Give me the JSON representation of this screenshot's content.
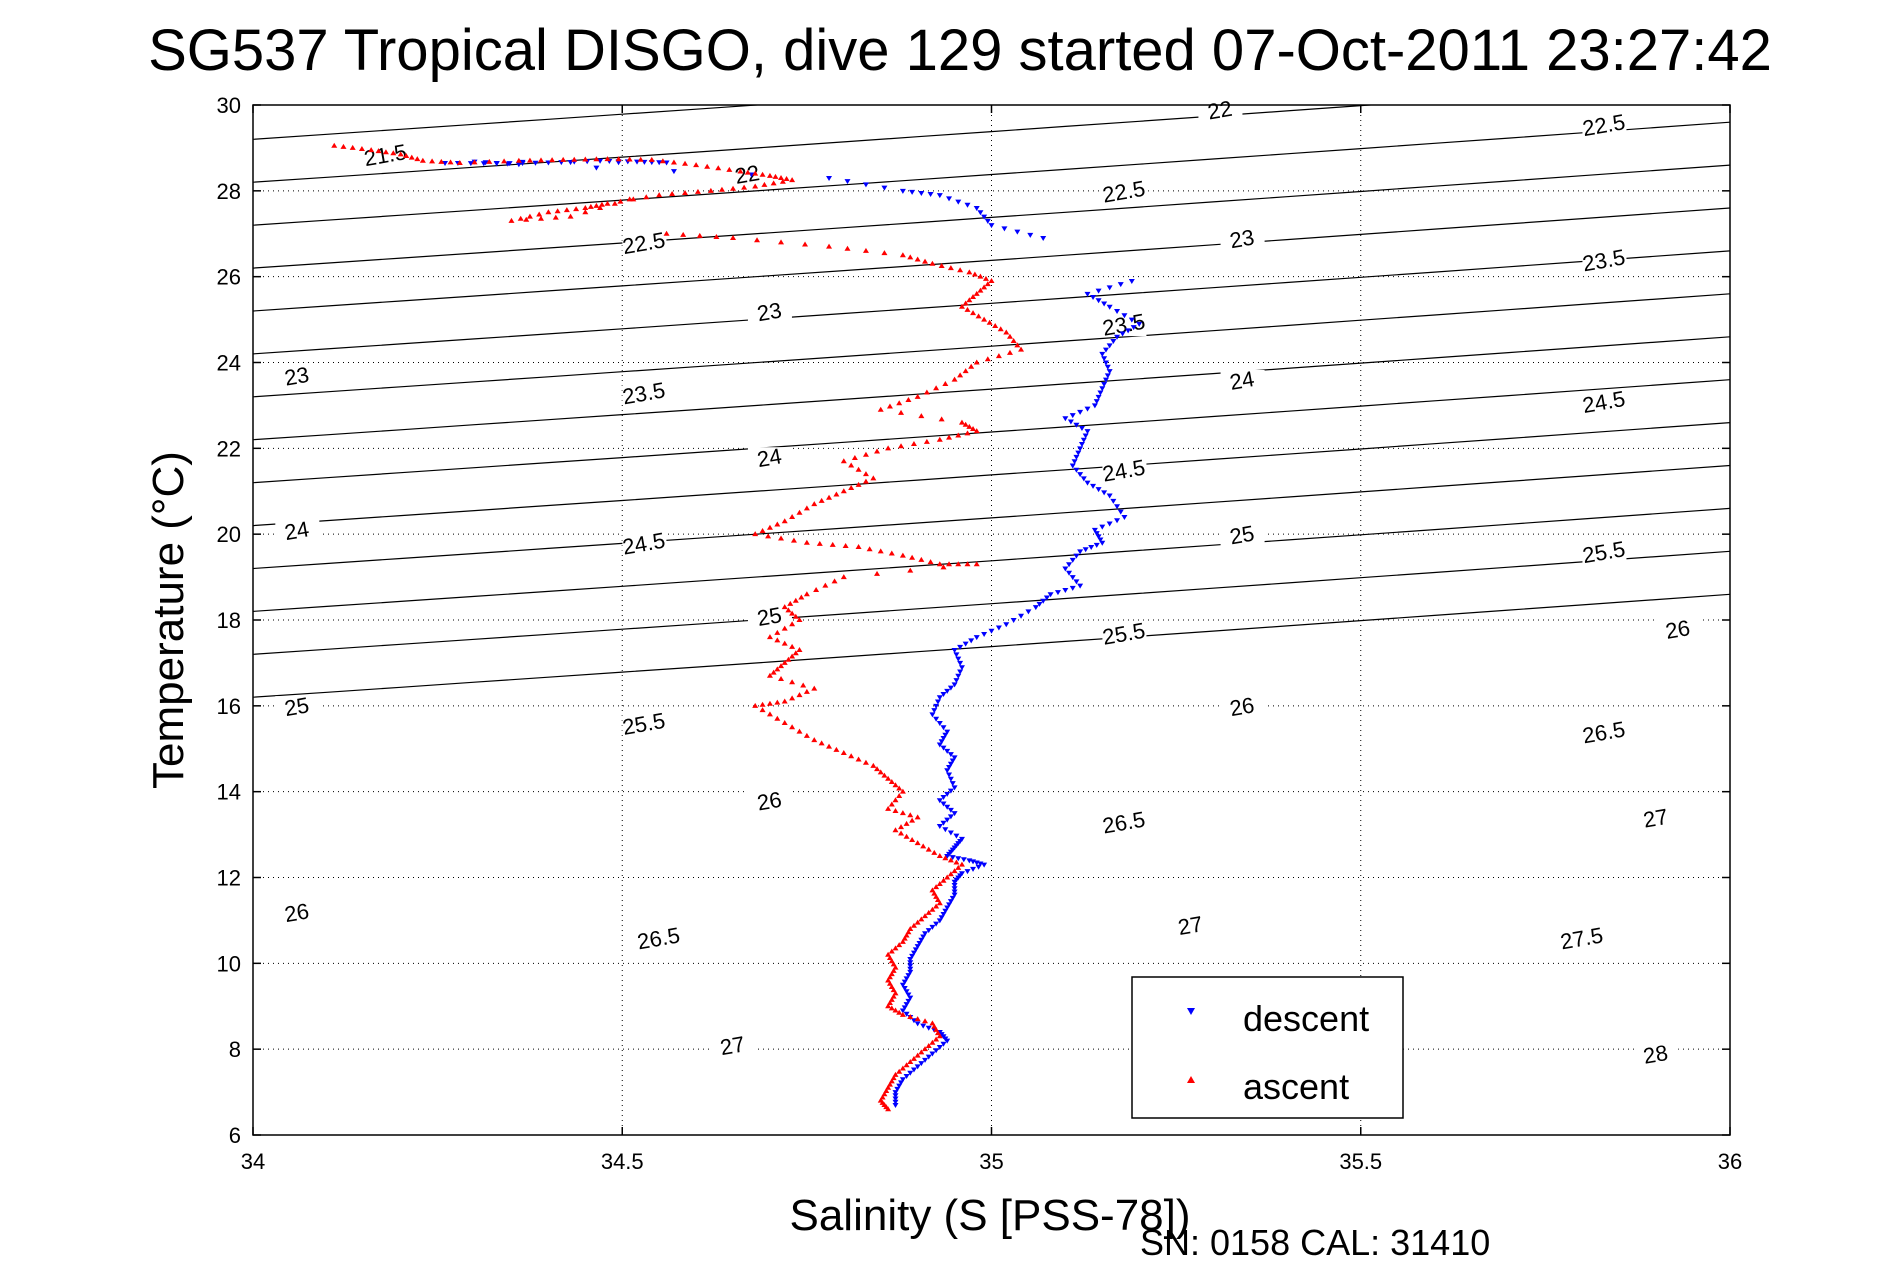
{
  "chart_data": {
    "type": "scatter",
    "title": "SG537 Tropical DISGO, dive 129 started 07-Oct-2011 23:27:42",
    "xlabel": "Salinity (S [PSS-78])",
    "ylabel": "Temperature (°C)",
    "xlim": [
      34,
      36
    ],
    "ylim": [
      6,
      30
    ],
    "xticks": [
      34,
      34.5,
      35,
      35.5,
      36
    ],
    "xtick_labels": [
      "34",
      "34.5",
      "35",
      "35.5",
      "36"
    ],
    "yticks": [
      6,
      8,
      10,
      12,
      14,
      16,
      18,
      20,
      22,
      24,
      26,
      28,
      30
    ],
    "ytick_labels": [
      "6",
      "8",
      "10",
      "12",
      "14",
      "16",
      "18",
      "20",
      "22",
      "24",
      "26",
      "28",
      "30"
    ],
    "grid": true,
    "legend_position": "bottom-right",
    "contours": {
      "sigma_levels": [
        21.5,
        22,
        22.5,
        23,
        23.5,
        24,
        24.5,
        25,
        25.5,
        26,
        26.5,
        27,
        27.5,
        28
      ],
      "labels": [
        {
          "text": "21.5",
          "s": 34.18,
          "t": 28.75
        },
        {
          "text": "22",
          "s": 35.31,
          "t": 29.8
        },
        {
          "text": "22.5",
          "s": 35.83,
          "t": 29.45
        },
        {
          "text": "22",
          "s": 34.67,
          "t": 28.3
        },
        {
          "text": "22.5",
          "s": 35.18,
          "t": 27.9
        },
        {
          "text": "22.5",
          "s": 34.53,
          "t": 26.7
        },
        {
          "text": "23",
          "s": 35.34,
          "t": 26.8
        },
        {
          "text": "23.5",
          "s": 35.83,
          "t": 26.3
        },
        {
          "text": "23",
          "s": 34.7,
          "t": 25.1
        },
        {
          "text": "23.5",
          "s": 35.18,
          "t": 24.8
        },
        {
          "text": "23",
          "s": 34.06,
          "t": 23.6
        },
        {
          "text": "23.5",
          "s": 34.53,
          "t": 23.2
        },
        {
          "text": "24",
          "s": 35.34,
          "t": 23.5
        },
        {
          "text": "24.5",
          "s": 35.83,
          "t": 23.0
        },
        {
          "text": "24",
          "s": 34.7,
          "t": 21.7
        },
        {
          "text": "24.5",
          "s": 35.18,
          "t": 21.4
        },
        {
          "text": "24",
          "s": 34.06,
          "t": 20.0
        },
        {
          "text": "24.5",
          "s": 34.53,
          "t": 19.7
        },
        {
          "text": "25",
          "s": 35.34,
          "t": 19.9
        },
        {
          "text": "25.5",
          "s": 35.83,
          "t": 19.5
        },
        {
          "text": "25",
          "s": 34.7,
          "t": 18.0
        },
        {
          "text": "25.5",
          "s": 35.18,
          "t": 17.6
        },
        {
          "text": "26",
          "s": 35.93,
          "t": 17.7
        },
        {
          "text": "25",
          "s": 34.06,
          "t": 15.9
        },
        {
          "text": "25.5",
          "s": 34.53,
          "t": 15.5
        },
        {
          "text": "26",
          "s": 35.34,
          "t": 15.9
        },
        {
          "text": "26.5",
          "s": 35.83,
          "t": 15.3
        },
        {
          "text": "26",
          "s": 34.7,
          "t": 13.7
        },
        {
          "text": "26.5",
          "s": 35.18,
          "t": 13.2
        },
        {
          "text": "27",
          "s": 35.9,
          "t": 13.3
        },
        {
          "text": "26",
          "s": 34.06,
          "t": 11.1
        },
        {
          "text": "26.5",
          "s": 34.55,
          "t": 10.5
        },
        {
          "text": "27",
          "s": 35.27,
          "t": 10.8
        },
        {
          "text": "27.5",
          "s": 35.8,
          "t": 10.5
        },
        {
          "text": "27",
          "s": 34.65,
          "t": 8.0
        },
        {
          "text": "28",
          "s": 35.9,
          "t": 7.8
        }
      ]
    },
    "series": [
      {
        "name": "descent",
        "color": "#0000ff",
        "marker": "triangle-down",
        "points": [
          [
            34.26,
            28.65
          ],
          [
            34.33,
            28.64
          ],
          [
            34.4,
            28.66
          ],
          [
            34.47,
            28.7
          ],
          [
            34.52,
            28.68
          ],
          [
            34.56,
            28.66
          ],
          [
            34.3,
            28.68
          ],
          [
            34.36,
            28.62
          ],
          [
            34.78,
            28.3
          ],
          [
            34.88,
            28.0
          ],
          [
            34.93,
            27.9
          ],
          [
            34.98,
            27.6
          ],
          [
            35.0,
            27.2
          ],
          [
            35.07,
            26.9
          ],
          [
            35.19,
            25.9
          ],
          [
            35.13,
            25.6
          ],
          [
            35.16,
            25.3
          ],
          [
            35.2,
            24.9
          ],
          [
            35.17,
            24.6
          ],
          [
            35.15,
            24.2
          ],
          [
            35.16,
            23.8
          ],
          [
            35.15,
            23.4
          ],
          [
            35.14,
            23.0
          ],
          [
            35.1,
            22.7
          ],
          [
            35.13,
            22.4
          ],
          [
            35.12,
            22.0
          ],
          [
            35.11,
            21.6
          ],
          [
            35.13,
            21.2
          ],
          [
            35.16,
            20.9
          ],
          [
            35.18,
            20.4
          ],
          [
            35.14,
            20.1
          ],
          [
            35.15,
            19.8
          ],
          [
            35.12,
            19.6
          ],
          [
            35.1,
            19.2
          ],
          [
            35.12,
            18.8
          ],
          [
            35.08,
            18.6
          ],
          [
            35.06,
            18.3
          ],
          [
            35.02,
            17.9
          ],
          [
            34.98,
            17.6
          ],
          [
            34.95,
            17.3
          ],
          [
            34.96,
            16.9
          ],
          [
            34.95,
            16.5
          ],
          [
            34.93,
            16.2
          ],
          [
            34.92,
            15.8
          ],
          [
            34.94,
            15.4
          ],
          [
            34.93,
            15.1
          ],
          [
            34.95,
            14.8
          ],
          [
            34.94,
            14.5
          ],
          [
            34.95,
            14.1
          ],
          [
            34.93,
            13.8
          ],
          [
            34.95,
            13.5
          ],
          [
            34.93,
            13.2
          ],
          [
            34.96,
            12.9
          ],
          [
            34.95,
            12.7
          ],
          [
            34.94,
            12.5
          ],
          [
            34.97,
            12.4
          ],
          [
            34.99,
            12.3
          ],
          [
            34.96,
            12.1
          ],
          [
            34.95,
            11.9
          ],
          [
            34.95,
            11.6
          ],
          [
            34.94,
            11.3
          ],
          [
            34.93,
            11.0
          ],
          [
            34.91,
            10.7
          ],
          [
            34.9,
            10.4
          ],
          [
            34.89,
            10.1
          ],
          [
            34.89,
            9.8
          ],
          [
            34.88,
            9.5
          ],
          [
            34.89,
            9.2
          ],
          [
            34.88,
            8.9
          ],
          [
            34.9,
            8.6
          ],
          [
            34.93,
            8.4
          ],
          [
            34.94,
            8.2
          ],
          [
            34.92,
            7.9
          ],
          [
            34.9,
            7.6
          ],
          [
            34.88,
            7.3
          ],
          [
            34.87,
            7.0
          ],
          [
            34.87,
            6.7
          ]
        ]
      },
      {
        "name": "ascent",
        "color": "#ff0000",
        "marker": "triangle-up",
        "points": [
          [
            34.11,
            29.05
          ],
          [
            34.16,
            28.95
          ],
          [
            34.2,
            28.85
          ],
          [
            34.23,
            28.7
          ],
          [
            34.28,
            28.65
          ],
          [
            34.36,
            28.7
          ],
          [
            34.42,
            28.72
          ],
          [
            34.48,
            28.74
          ],
          [
            34.54,
            28.72
          ],
          [
            34.6,
            28.6
          ],
          [
            34.66,
            28.45
          ],
          [
            34.7,
            28.35
          ],
          [
            34.73,
            28.25
          ],
          [
            34.68,
            28.1
          ],
          [
            34.62,
            28.0
          ],
          [
            34.55,
            27.9
          ],
          [
            34.48,
            27.7
          ],
          [
            34.45,
            27.6
          ],
          [
            34.4,
            27.5
          ],
          [
            34.35,
            27.3
          ],
          [
            34.43,
            27.4
          ],
          [
            34.51,
            27.8
          ],
          [
            34.56,
            27.0
          ],
          [
            34.65,
            26.9
          ],
          [
            34.78,
            26.7
          ],
          [
            34.88,
            26.5
          ],
          [
            34.92,
            26.3
          ],
          [
            34.97,
            26.1
          ],
          [
            35.0,
            25.9
          ],
          [
            34.98,
            25.6
          ],
          [
            34.96,
            25.3
          ],
          [
            34.99,
            25.0
          ],
          [
            35.02,
            24.7
          ],
          [
            35.04,
            24.3
          ],
          [
            34.98,
            24.0
          ],
          [
            34.95,
            23.6
          ],
          [
            34.9,
            23.2
          ],
          [
            34.85,
            22.9
          ],
          [
            34.96,
            22.6
          ],
          [
            34.98,
            22.4
          ],
          [
            34.93,
            22.2
          ],
          [
            34.86,
            22.0
          ],
          [
            34.8,
            21.7
          ],
          [
            34.84,
            21.3
          ],
          [
            34.8,
            21.0
          ],
          [
            34.76,
            20.7
          ],
          [
            34.72,
            20.3
          ],
          [
            34.68,
            20.0
          ],
          [
            34.75,
            19.8
          ],
          [
            34.82,
            19.7
          ],
          [
            34.88,
            19.5
          ],
          [
            34.93,
            19.3
          ],
          [
            34.98,
            19.3
          ],
          [
            34.8,
            19.0
          ],
          [
            34.75,
            18.6
          ],
          [
            34.72,
            18.3
          ],
          [
            34.74,
            18.0
          ],
          [
            34.7,
            17.6
          ],
          [
            34.74,
            17.3
          ],
          [
            34.72,
            17.0
          ],
          [
            34.7,
            16.7
          ],
          [
            34.76,
            16.4
          ],
          [
            34.72,
            16.1
          ],
          [
            34.68,
            16.0
          ],
          [
            34.72,
            15.6
          ],
          [
            34.76,
            15.2
          ],
          [
            34.8,
            14.9
          ],
          [
            34.84,
            14.6
          ],
          [
            34.86,
            14.3
          ],
          [
            34.88,
            14.0
          ],
          [
            34.86,
            13.6
          ],
          [
            34.9,
            13.4
          ],
          [
            34.87,
            13.1
          ],
          [
            34.9,
            12.8
          ],
          [
            34.93,
            12.5
          ],
          [
            34.96,
            12.3
          ],
          [
            34.94,
            12.0
          ],
          [
            34.92,
            11.7
          ],
          [
            34.93,
            11.4
          ],
          [
            34.91,
            11.1
          ],
          [
            34.89,
            10.8
          ],
          [
            34.88,
            10.5
          ],
          [
            34.86,
            10.2
          ],
          [
            34.87,
            9.9
          ],
          [
            34.86,
            9.6
          ],
          [
            34.87,
            9.3
          ],
          [
            34.86,
            9.0
          ],
          [
            34.88,
            8.8
          ],
          [
            34.92,
            8.6
          ],
          [
            34.93,
            8.3
          ],
          [
            34.91,
            8.0
          ],
          [
            34.89,
            7.7
          ],
          [
            34.87,
            7.4
          ],
          [
            34.86,
            7.1
          ],
          [
            34.85,
            6.8
          ],
          [
            34.86,
            6.6
          ]
        ]
      }
    ]
  },
  "legend": {
    "descent_label": "descent",
    "ascent_label": "ascent"
  },
  "footer": {
    "serial": "SN: 0158  CAL: 31410"
  }
}
